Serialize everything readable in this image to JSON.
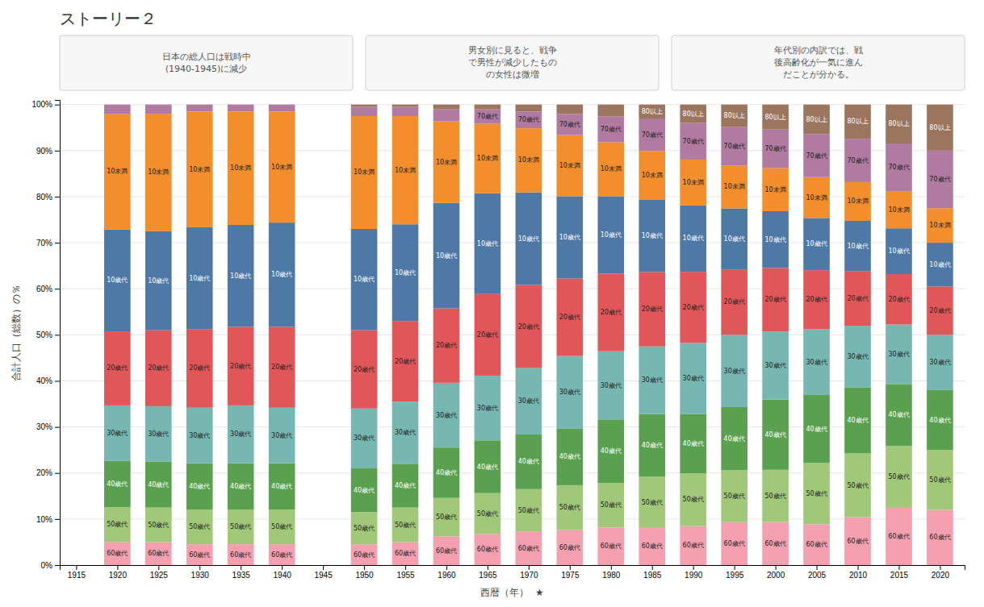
{
  "chart_data": {
    "type": "bar",
    "stacked": true,
    "title": "ストーリー２",
    "annotations": [
      "日本の総人口は戦時中\n(1940-1945)に減少",
      "男女別に見ると、戦争\nで男性が減少したもの\nの女性は微増",
      "年代別の内訳では、戦\n後高齢化が一気に進ん\nだことが分かる。"
    ],
    "xlabel": "西暦（年）  ★",
    "ylabel": "合計人口（総数）の％",
    "x": [
      1920,
      1925,
      1930,
      1935,
      1940,
      1950,
      1955,
      1960,
      1965,
      1970,
      1975,
      1980,
      1985,
      1990,
      1995,
      2000,
      2005,
      2010,
      2015,
      2020
    ],
    "series": [
      {
        "name": "60歳代",
        "color": "#f4a0b0",
        "values": [
          5.025,
          5,
          4.523,
          4.523,
          4.523,
          4.5,
          5,
          6.25,
          6.771,
          7.216,
          7.653,
          8.163,
          8.081,
          8.458,
          9.314,
          9.36,
          8.867,
          10.396,
          12.438,
          12
        ]
      },
      {
        "name": "50歳代",
        "color": "#a0c878",
        "values": [
          7.538,
          7.5,
          7.538,
          7.538,
          7.538,
          7,
          7.5,
          8.333,
          8.854,
          9.278,
          9.694,
          9.694,
          11.111,
          11.443,
          11.275,
          11.33,
          13.3,
          13.861,
          13.433,
          13
        ]
      },
      {
        "name": "40歳代",
        "color": "#59a14f",
        "values": [
          10.05,
          10,
          10.05,
          10.05,
          10.05,
          9.5,
          9.5,
          10.938,
          11.458,
          11.856,
          12.245,
          13.776,
          13.636,
          12.935,
          13.725,
          15.271,
          14.778,
          14.356,
          13.433,
          13
        ]
      },
      {
        "name": "30歳代",
        "color": "#76b7b2",
        "values": [
          12.06,
          12,
          12.06,
          12.563,
          12.06,
          13,
          13.5,
          14.063,
          14.063,
          14.433,
          15.816,
          14.796,
          14.646,
          15.423,
          15.686,
          14.778,
          14.286,
          13.366,
          12.935,
          12
        ]
      },
      {
        "name": "20歳代",
        "color": "#e15759",
        "values": [
          16.08,
          16.5,
          17.085,
          17.085,
          17.588,
          17,
          17.5,
          16.146,
          17.708,
          18.041,
          16.837,
          16.837,
          16.162,
          15.423,
          14.216,
          13.793,
          12.808,
          11.881,
          10.945,
          10.5
        ]
      },
      {
        "name": "10歳代",
        "color": "#4e79a7",
        "values": [
          22.111,
          21.5,
          22.111,
          22.111,
          22.613,
          22,
          21,
          22.917,
          21.875,
          20.103,
          17.857,
          16.837,
          15.657,
          14.428,
          13.235,
          12.315,
          11.33,
          10.891,
          9.95,
          9.5
        ]
      },
      {
        "name": "10未満",
        "color": "#f28e2b",
        "values": [
          25.126,
          25.5,
          25.126,
          24.623,
          24.121,
          24.5,
          23.5,
          17.708,
          15.104,
          13.918,
          13.265,
          11.735,
          10.606,
          9.95,
          9.314,
          9.36,
          8.867,
          8.416,
          7.96,
          7.5
        ]
      },
      {
        "name": "70歳代",
        "color": "#b07aa1",
        "values": [
          2.01,
          2,
          1.508,
          1.508,
          1.508,
          2,
          2,
          2.604,
          3.125,
          3.608,
          4.592,
          5.612,
          7.071,
          7.96,
          8.333,
          8.374,
          9.36,
          9.406,
          10.448,
          12.5
        ]
      },
      {
        "name": "80以上",
        "color": "#9c755f",
        "values": [
          0,
          0,
          0,
          0,
          0,
          0.5,
          0.5,
          1.042,
          1.042,
          1.546,
          2.041,
          2.551,
          3.03,
          3.98,
          4.902,
          5.419,
          6.404,
          7.426,
          8.458,
          10
        ]
      }
    ],
    "xlim": [
      1913,
      2023
    ],
    "xticks": [
      1915,
      1920,
      1925,
      1930,
      1935,
      1940,
      1945,
      1950,
      1955,
      1960,
      1965,
      1970,
      1975,
      1980,
      1985,
      1990,
      1995,
      2000,
      2005,
      2010,
      2015,
      2020
    ],
    "ylim": [
      0,
      101
    ],
    "yticks": [
      {
        "value": 0,
        "label": "0%"
      },
      {
        "value": 10,
        "label": "10%"
      },
      {
        "value": 20,
        "label": "20%"
      },
      {
        "value": 30,
        "label": "30%"
      },
      {
        "value": 40,
        "label": "40%"
      },
      {
        "value": 50,
        "label": "50%"
      },
      {
        "value": 60,
        "label": "60%"
      },
      {
        "value": 70,
        "label": "70%"
      },
      {
        "value": 80,
        "label": "80%"
      },
      {
        "value": 90,
        "label": "90%"
      },
      {
        "value": 100,
        "label": "100%"
      }
    ],
    "grid": true
  }
}
